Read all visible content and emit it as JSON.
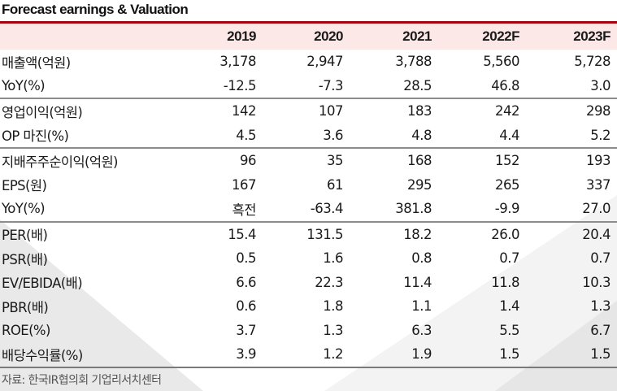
{
  "title": "Forecast earnings & Valuation",
  "columns": [
    "2019",
    "2020",
    "2021",
    "2022F",
    "2023F"
  ],
  "groups": [
    {
      "rows": [
        {
          "label": "매출액(억원)",
          "values": [
            "3,178",
            "2,947",
            "3,788",
            "5,560",
            "5,728"
          ]
        },
        {
          "label": "YoY(%)",
          "values": [
            "-12.5",
            "-7.3",
            "28.5",
            "46.8",
            "3.0"
          ]
        }
      ]
    },
    {
      "rows": [
        {
          "label": "영업이익(억원)",
          "values": [
            "142",
            "107",
            "183",
            "242",
            "298"
          ]
        },
        {
          "label": "OP 마진(%)",
          "values": [
            "4.5",
            "3.6",
            "4.8",
            "4.4",
            "5.2"
          ]
        }
      ]
    },
    {
      "rows": [
        {
          "label": "지배주주순이익(억원)",
          "values": [
            "96",
            "35",
            "168",
            "152",
            "193"
          ]
        },
        {
          "label": "EPS(원)",
          "values": [
            "167",
            "61",
            "295",
            "265",
            "337"
          ]
        },
        {
          "label": "YoY(%)",
          "values": [
            "흑전",
            "-63.4",
            "381.8",
            "-9.9",
            "27.0"
          ]
        }
      ]
    },
    {
      "rows": [
        {
          "label": "PER(배)",
          "values": [
            "15.4",
            "131.5",
            "18.2",
            "26.0",
            "20.4"
          ]
        },
        {
          "label": "PSR(배)",
          "values": [
            "0.5",
            "1.6",
            "0.8",
            "0.7",
            "0.7"
          ]
        },
        {
          "label": "EV/EBIDA(배)",
          "values": [
            "6.6",
            "22.3",
            "11.4",
            "11.8",
            "10.3"
          ]
        },
        {
          "label": "PBR(배)",
          "values": [
            "0.6",
            "1.8",
            "1.1",
            "1.4",
            "1.3"
          ]
        },
        {
          "label": "ROE(%)",
          "values": [
            "3.7",
            "1.3",
            "6.3",
            "5.5",
            "6.7"
          ]
        },
        {
          "label": "배당수익률(%)",
          "values": [
            "3.9",
            "1.2",
            "1.9",
            "1.5",
            "1.5"
          ]
        }
      ]
    }
  ],
  "source": "자료: 한국IR협의회 기업리서치센터",
  "colors": {
    "accent_rule": "#a5050d",
    "header_band": "#fde8e8",
    "separator": "#8c8c8c"
  }
}
